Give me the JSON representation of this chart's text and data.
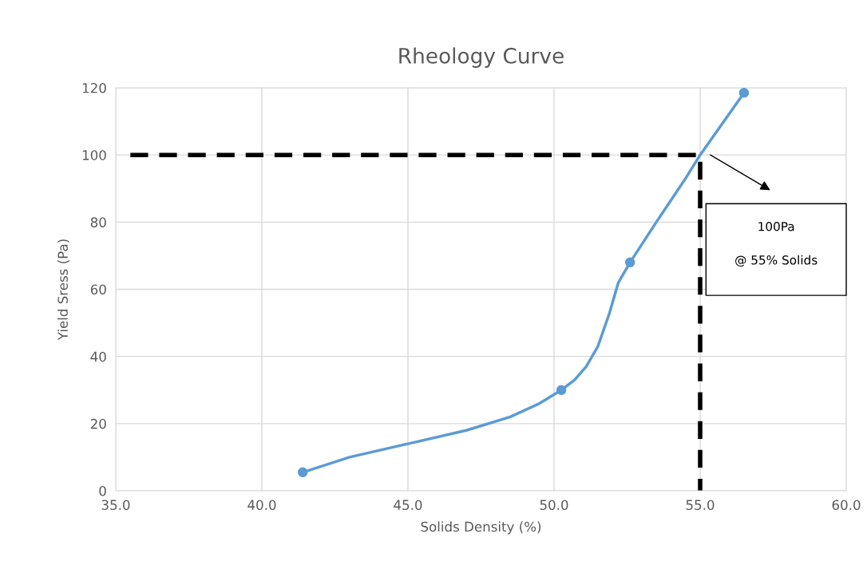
{
  "chart_data": {
    "type": "line",
    "title": "Rheology Curve",
    "xlabel": "Solids Density (%)",
    "ylabel": "Yield Sress (Pa)",
    "series": [
      {
        "color": "#5b9bd5",
        "x": [
          41.4,
          43,
          45,
          47,
          48.5,
          49.5,
          50.25,
          50.7,
          51.1,
          51.5,
          51.9,
          52.2,
          52.6,
          53.5,
          54.5,
          55,
          56.5
        ],
        "values": [
          5.5,
          10,
          14,
          18,
          22,
          26,
          30,
          33,
          37,
          43,
          53,
          62,
          68,
          80,
          93,
          100,
          118.5
        ],
        "line_style": "solid"
      },
      {
        "type": "scatter",
        "color": "#5b9bd5",
        "x": [
          41.4,
          50.25,
          52.6,
          56.5
        ],
        "values": [
          5.5,
          30,
          68,
          118.5
        ],
        "marker": "circle"
      },
      {
        "color": "#000000",
        "x": [
          35.5,
          55,
          55
        ],
        "values": [
          100,
          100,
          0
        ],
        "line_style": "dashed"
      }
    ],
    "annotations": [
      "100Pa",
      "@ 55% Solids"
    ],
    "xlim": [
      35,
      60
    ],
    "xticks": [
      {
        "value": 35,
        "label": "35.0"
      },
      {
        "value": 40,
        "label": "40.0"
      },
      {
        "value": 45,
        "label": "45.0"
      },
      {
        "value": 50,
        "label": "50.0"
      },
      {
        "value": 55,
        "label": "55.0"
      },
      {
        "value": 60,
        "label": "60.0"
      }
    ],
    "ylim": [
      0,
      120
    ],
    "yticks": [
      0,
      20,
      40,
      60,
      80,
      100,
      120
    ],
    "grid": true
  }
}
